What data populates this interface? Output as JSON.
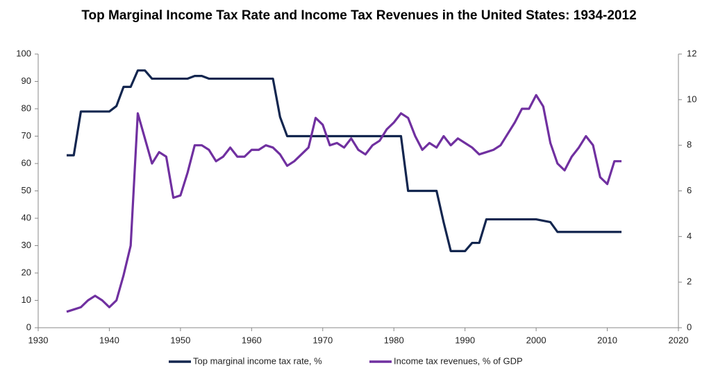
{
  "chart_data": {
    "type": "line",
    "title": "Top Marginal Income Tax Rate and Income Tax Revenues in the United States: 1934-2012",
    "x": [
      1934,
      1935,
      1936,
      1937,
      1938,
      1939,
      1940,
      1941,
      1942,
      1943,
      1944,
      1945,
      1946,
      1947,
      1948,
      1949,
      1950,
      1951,
      1952,
      1953,
      1954,
      1955,
      1956,
      1957,
      1958,
      1959,
      1960,
      1961,
      1962,
      1963,
      1964,
      1965,
      1966,
      1967,
      1968,
      1969,
      1970,
      1971,
      1972,
      1973,
      1974,
      1975,
      1976,
      1977,
      1978,
      1979,
      1980,
      1981,
      1982,
      1983,
      1984,
      1985,
      1986,
      1987,
      1988,
      1989,
      1990,
      1991,
      1992,
      1993,
      1994,
      1995,
      1996,
      1997,
      1998,
      1999,
      2000,
      2001,
      2002,
      2003,
      2004,
      2005,
      2006,
      2007,
      2008,
      2009,
      2010,
      2011,
      2012
    ],
    "series": [
      {
        "name": "Top marginal income tax rate, %",
        "color": "#13264f",
        "values": [
          63,
          63,
          79,
          79,
          79,
          79,
          79,
          81,
          88,
          88,
          94,
          94,
          91,
          91,
          91,
          91,
          91,
          91,
          92,
          92,
          91,
          91,
          91,
          91,
          91,
          91,
          91,
          91,
          91,
          91,
          77,
          70,
          70,
          70,
          70,
          70,
          70,
          70,
          70,
          70,
          70,
          70,
          70,
          70,
          70,
          70,
          70,
          70,
          50,
          50,
          50,
          50,
          50,
          38.5,
          28,
          28,
          28,
          31,
          31,
          39.6,
          39.6,
          39.6,
          39.6,
          39.6,
          39.6,
          39.6,
          39.6,
          39.1,
          38.6,
          35,
          35,
          35,
          35,
          35,
          35,
          35,
          35,
          35,
          35
        ]
      },
      {
        "name": "Income tax revenues, % of GDP",
        "color": "#7030a0",
        "axis": "y2",
        "values": [
          0.7,
          0.8,
          0.9,
          1.2,
          1.4,
          1.2,
          0.9,
          1.2,
          2.3,
          3.6,
          9.4,
          8.3,
          7.2,
          7.7,
          7.5,
          5.7,
          5.8,
          6.8,
          8.0,
          8.0,
          7.8,
          7.3,
          7.5,
          7.9,
          7.5,
          7.5,
          7.8,
          7.8,
          8.0,
          7.9,
          7.6,
          7.1,
          7.3,
          7.6,
          7.9,
          9.2,
          8.9,
          8.0,
          8.1,
          7.9,
          8.3,
          7.8,
          7.6,
          8.0,
          8.2,
          8.7,
          9.0,
          9.4,
          9.2,
          8.4,
          7.8,
          8.1,
          7.9,
          8.4,
          8.0,
          8.3,
          8.1,
          7.9,
          7.6,
          7.7,
          7.8,
          8.0,
          8.5,
          9.0,
          9.6,
          9.6,
          10.2,
          9.7,
          8.1,
          7.2,
          6.9,
          7.5,
          7.9,
          8.4,
          8.0,
          6.6,
          6.3,
          7.3,
          7.3
        ]
      }
    ],
    "xlim": [
      1930,
      2020
    ],
    "xticks": [
      1930,
      1940,
      1950,
      1960,
      1970,
      1980,
      1990,
      2000,
      2010,
      2020
    ],
    "ylim": [
      0,
      100
    ],
    "yticks": [
      0,
      10,
      20,
      30,
      40,
      50,
      60,
      70,
      80,
      90,
      100
    ],
    "y2lim": [
      0,
      12
    ],
    "y2ticks": [
      0,
      2,
      4,
      6,
      8,
      10,
      12
    ],
    "grid": false,
    "legend": "bottom"
  }
}
